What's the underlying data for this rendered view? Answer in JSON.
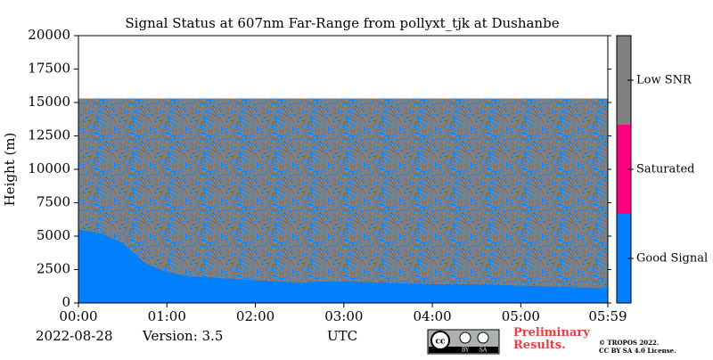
{
  "chart_data": {
    "type": "status-height",
    "title": "Signal Status at 607nm Far-Range from pollyxt_tjk at Dushanbe",
    "ylabel": "Height (m)",
    "xlabel": "UTC",
    "date": "2022-08-28",
    "version": "Version: 3.5",
    "preliminary": "Preliminary Results.",
    "copyright": "© TROPOS 2022.",
    "license": "CC BY SA 4.0 License.",
    "badge": [
      "cc",
      "BY",
      "SA"
    ],
    "x": [
      0,
      0.25,
      0.5,
      0.75,
      1,
      1.25,
      1.5,
      1.75,
      2,
      2.25,
      2.5,
      2.75,
      3,
      3.5,
      4,
      4.5,
      5,
      5.5,
      5.9833
    ],
    "good_signal_top": [
      5500,
      5200,
      4500,
      3000,
      2300,
      2000,
      1900,
      1800,
      1700,
      1600,
      1500,
      1600,
      1600,
      1500,
      1400,
      1400,
      1300,
      1200,
      1100
    ],
    "data_top": 15300,
    "xlim": [
      0,
      5.9833
    ],
    "xticks": [
      {
        "value": 0,
        "label": "00:00"
      },
      {
        "value": 1,
        "label": "01:00"
      },
      {
        "value": 2,
        "label": "02:00"
      },
      {
        "value": 3,
        "label": "03:00"
      },
      {
        "value": 4,
        "label": "04:00"
      },
      {
        "value": 5,
        "label": "05:00"
      },
      {
        "value": 5.9833,
        "label": "05:59"
      }
    ],
    "ylim": [
      0,
      20000
    ],
    "yticks": [
      0,
      2500,
      5000,
      7500,
      10000,
      12500,
      15000,
      17500,
      20000
    ],
    "colorbar": [
      {
        "name": "Good Signal",
        "color": "#0080ff"
      },
      {
        "name": "Saturated",
        "color": "#ff0080"
      },
      {
        "name": "Low SNR",
        "color": "#808080"
      }
    ]
  }
}
